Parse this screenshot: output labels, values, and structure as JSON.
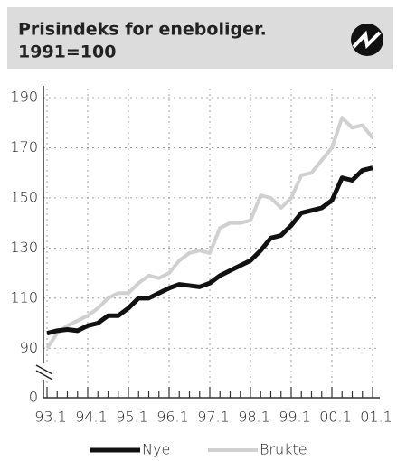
{
  "chart_data": {
    "type": "line",
    "title": "Prisindeks for eneboliger.",
    "subtitle": "1991=100",
    "categories": [
      "93.1",
      null,
      null,
      null,
      "94.1",
      null,
      null,
      null,
      "95.1",
      null,
      null,
      null,
      "96.1",
      null,
      null,
      null,
      "97.1",
      null,
      null,
      null,
      "98.1",
      null,
      null,
      null,
      "99.1",
      null,
      null,
      null,
      "00.1",
      null,
      null,
      null,
      "01.1"
    ],
    "series": [
      {
        "name": "Nye",
        "color": "#111111",
        "values": [
          96,
          97,
          97.5,
          97,
          99,
          100,
          103,
          103,
          106,
          110,
          110,
          112,
          114,
          115.5,
          115,
          114.5,
          116,
          119,
          121,
          123,
          125,
          129,
          134,
          135,
          139,
          144,
          145,
          146,
          149,
          158,
          157,
          161,
          162
        ]
      },
      {
        "name": "Brukte",
        "color": "#d0d0d0",
        "values": [
          90,
          96,
          99,
          101,
          103,
          106,
          110,
          112,
          112,
          116,
          119,
          118,
          120,
          125,
          128,
          129,
          128,
          138,
          140,
          140,
          141,
          151,
          150,
          146,
          150,
          159,
          160,
          165,
          170,
          182,
          178,
          179,
          174
        ]
      }
    ],
    "ylim": [
      0,
      190
    ],
    "axis_break": [
      0,
      80
    ],
    "yticks": [
      0,
      90,
      110,
      130,
      150,
      170,
      190
    ],
    "grid": true
  }
}
